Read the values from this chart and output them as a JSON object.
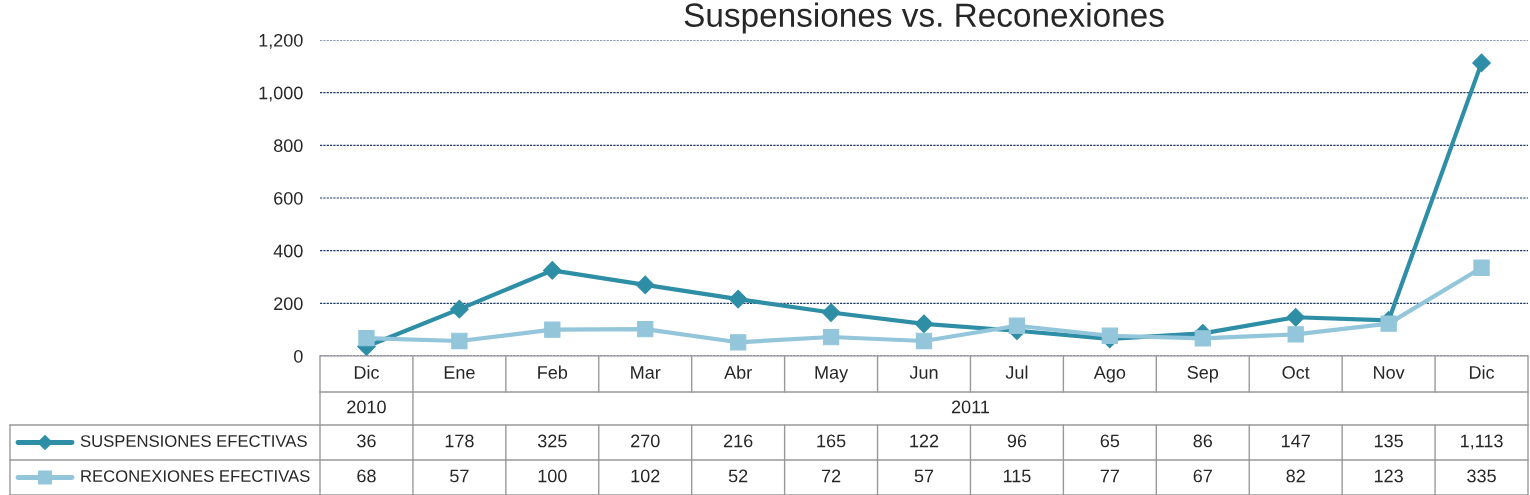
{
  "chart_data": {
    "type": "line",
    "title": "Suspensiones vs. Reconexiones",
    "categories": [
      "Dic",
      "Ene",
      "Feb",
      "Mar",
      "Abr",
      "May",
      "Jun",
      "Jul",
      "Ago",
      "Sep",
      "Oct",
      "Nov",
      "Dic"
    ],
    "annotations": [
      "2010",
      "2011"
    ],
    "series": [
      {
        "name": "SUSPENSIONES EFECTIVAS",
        "color": "#2e8ea6",
        "marker": "diamond",
        "values": [
          36,
          178,
          325,
          270,
          216,
          165,
          122,
          96,
          65,
          86,
          147,
          135,
          1113
        ],
        "value_labels": [
          "36",
          "178",
          "325",
          "270",
          "216",
          "165",
          "122",
          "96",
          "65",
          "86",
          "147",
          "135",
          "1,113"
        ]
      },
      {
        "name": "RECONEXIONES EFECTIVAS",
        "color": "#93c6da",
        "marker": "square",
        "values": [
          68,
          57,
          100,
          102,
          52,
          72,
          57,
          115,
          77,
          67,
          82,
          123,
          335
        ],
        "value_labels": [
          "68",
          "57",
          "100",
          "102",
          "52",
          "72",
          "57",
          "115",
          "77",
          "67",
          "82",
          "123",
          "335"
        ]
      }
    ],
    "ylim": [
      0,
      1200
    ],
    "yticks": [
      0,
      200,
      400,
      600,
      800,
      {
        "value": 1000,
        "label": "1,000"
      },
      {
        "value": 1200,
        "label": "1,200"
      }
    ],
    "grid": "y",
    "legend": "bottom"
  }
}
